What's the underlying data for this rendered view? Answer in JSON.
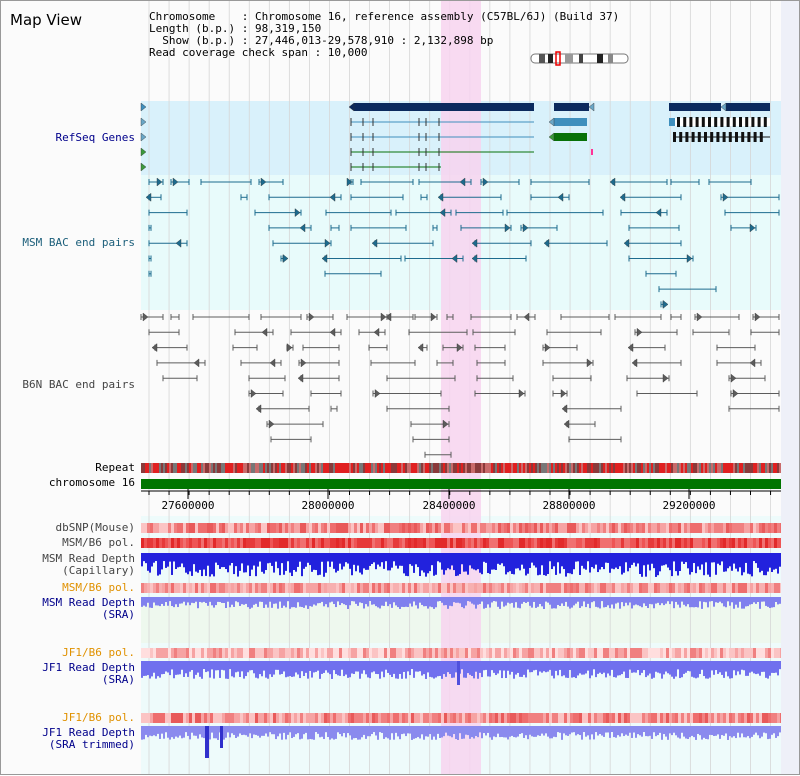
{
  "app": {
    "title": "Map View"
  },
  "chrom_info": {
    "chromosome_line": "Chromosome    : Chromosome 16, reference assembly (C57BL/6J) (Build 37)",
    "length_line": "Length (b.p.) : 98,319,150",
    "show_line": "  Show (b.p.) : 27,446,013-29,578,910 : 2,132,898 bp",
    "coverage_line": "Read coverage check span : 10,000"
  },
  "tracks": {
    "refseq": "RefSeq Genes",
    "msm_bac": "MSM BAC end pairs",
    "b6n_bac": "B6N BAC end pairs",
    "repeat": "Repeat",
    "chrom": "chromosome 16",
    "dbsnp": "dbSNP(Mouse)",
    "msm_b6_pol": "MSM/B6 pol.",
    "msm_read_cap_1": "MSM Read Depth",
    "msm_read_cap_2": "(Capillary)",
    "msm_b6_pol_sra": "MSM/B6 pol.",
    "msm_read_sra_1": "MSM Read Depth",
    "msm_read_sra_2": "(SRA)",
    "jf1_b6_pol": "JF1/B6 pol.",
    "jf1_read_sra_1": "JF1 Read Depth",
    "jf1_read_sra_2": "(SRA)",
    "jf1_b6_pol_trim": "JF1/B6 pol.",
    "jf1_read_trim_1": "JF1 Read Depth",
    "jf1_read_trim_2": "(SRA trimmed)"
  },
  "axis": {
    "ticks": [
      "27600000",
      "28000000",
      "28400000",
      "28800000",
      "29200000"
    ]
  },
  "colors": {
    "refseq_bg": "#d9f1fb",
    "bac_bg": "#e8fbfb",
    "highlight": "#f7d3ee",
    "chromosome_bar": "#007500",
    "gene_dark": "#0b2a5e",
    "gene_mid": "#3f8fbd",
    "gene_green": "#087108",
    "msm_bac": "#1d6b8e",
    "b6n_bac": "#5c5c5c",
    "depth_blue": "#2222dd",
    "depth_lavender": "#8080ee",
    "snp_red": "#e53939"
  }
}
